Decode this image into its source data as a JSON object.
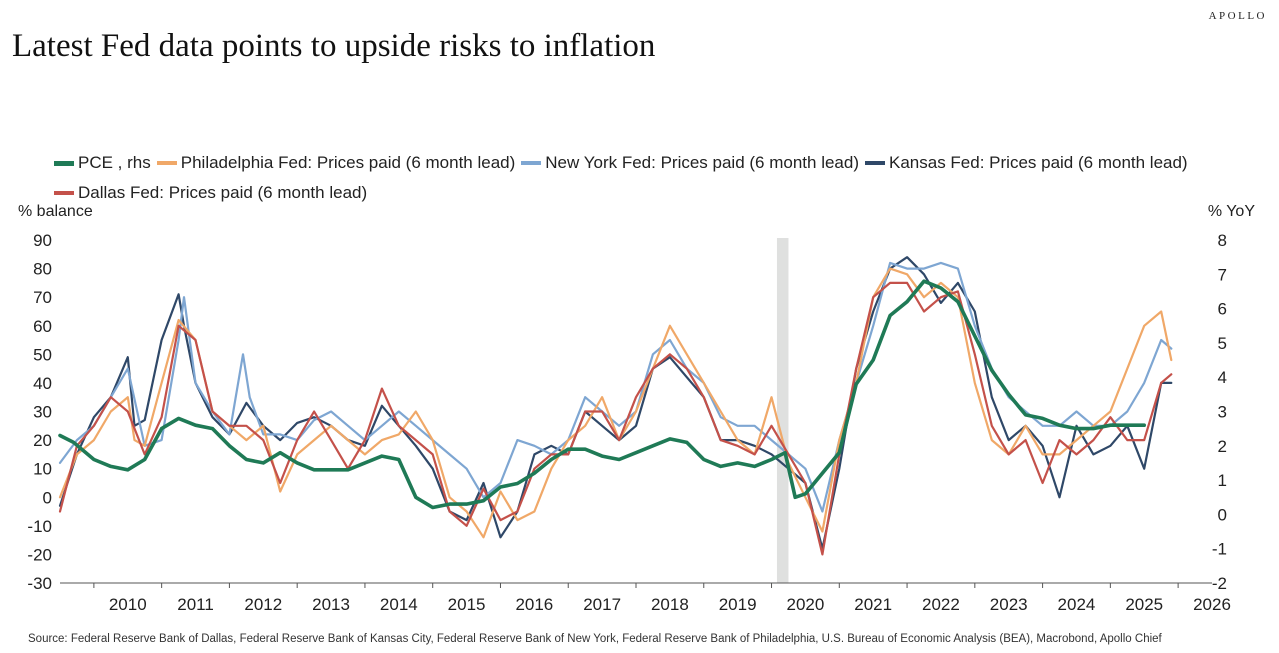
{
  "header": {
    "brand": "APOLLO",
    "title": "Latest Fed data points to upside risks to inflation"
  },
  "footer": {
    "source": "Source: Federal Reserve Bank of Dallas, Federal Reserve Bank of Kansas City, Federal Reserve Bank of New York, Federal Reserve Bank of Philadelphia, U.S. Bureau of Economic Analysis (BEA), Macrobond, Apollo Chief"
  },
  "chart_data": {
    "type": "line",
    "title": "Latest Fed data points to upside risks to inflation",
    "ylabel_left": "% balance",
    "ylabel_right": "% YoY",
    "ylim_left": [
      -30,
      90
    ],
    "ylim_right": [
      -2,
      8
    ],
    "yticks_left": [
      "90",
      "80",
      "70",
      "60",
      "50",
      "40",
      "30",
      "20",
      "10",
      "0",
      "-10",
      "-20",
      "-30"
    ],
    "yticks_right": [
      "8",
      "7",
      "6",
      "5",
      "4",
      "3",
      "2",
      "1",
      "0",
      "-1",
      "-2"
    ],
    "xlim": [
      2009.5,
      2026.5
    ],
    "xticks": [
      "2010",
      "2011",
      "2012",
      "2013",
      "2014",
      "2015",
      "2016",
      "2017",
      "2018",
      "2019",
      "2020",
      "2021",
      "2022",
      "2023",
      "2024",
      "2025",
      "2026"
    ],
    "recession_shade": [
      2020.08,
      2020.25
    ],
    "legend_position": "top",
    "series": [
      {
        "name": "Kansas Fed: Prices paid (6 month lead)",
        "label": "Kansas Fed: Prices paid (6 month lead)",
        "color": "#2f4868",
        "axis": "left",
        "x": [
          2009.5,
          2009.75,
          2010.0,
          2010.25,
          2010.5,
          2010.6,
          2010.75,
          2011.0,
          2011.25,
          2011.33,
          2011.5,
          2011.75,
          2012.0,
          2012.25,
          2012.5,
          2012.75,
          2013.0,
          2013.25,
          2013.5,
          2013.75,
          2014.0,
          2014.25,
          2014.5,
          2014.75,
          2015.0,
          2015.25,
          2015.5,
          2015.75,
          2016.0,
          2016.25,
          2016.5,
          2016.75,
          2017.0,
          2017.25,
          2017.5,
          2017.75,
          2018.0,
          2018.25,
          2018.5,
          2018.75,
          2019.0,
          2019.25,
          2019.5,
          2019.75,
          2020.0,
          2020.25,
          2020.5,
          2020.75,
          2021.0,
          2021.25,
          2021.5,
          2021.75,
          2022.0,
          2022.25,
          2022.5,
          2022.75,
          2023.0,
          2023.25,
          2023.5,
          2023.75,
          2024.0,
          2024.25,
          2024.5,
          2024.75,
          2025.0,
          2025.25,
          2025.5,
          2025.75,
          2025.9
        ],
        "values": [
          -3,
          15,
          28,
          35,
          49,
          25,
          27,
          55,
          71,
          60,
          40,
          28,
          22,
          33,
          25,
          20,
          26,
          28,
          25,
          20,
          18,
          32,
          25,
          18,
          10,
          -5,
          -8,
          5,
          -14,
          -5,
          15,
          18,
          15,
          30,
          25,
          20,
          25,
          45,
          49,
          42,
          35,
          20,
          20,
          18,
          15,
          10,
          5,
          -18,
          10,
          45,
          65,
          80,
          84,
          78,
          68,
          75,
          65,
          35,
          20,
          25,
          18,
          0,
          25,
          15,
          18,
          25,
          10,
          40,
          40
        ]
      },
      {
        "name": "New York Fed: Prices paid (6 month lead)",
        "label": "New York Fed: Prices paid (6 month lead)",
        "color": "#7ea6d2",
        "axis": "left",
        "x": [
          2009.5,
          2009.75,
          2010.0,
          2010.25,
          2010.5,
          2010.75,
          2011.0,
          2011.25,
          2011.33,
          2011.5,
          2011.75,
          2012.0,
          2012.2,
          2012.3,
          2012.5,
          2012.75,
          2013.0,
          2013.25,
          2013.5,
          2013.75,
          2014.0,
          2014.25,
          2014.5,
          2014.75,
          2015.0,
          2015.25,
          2015.5,
          2015.75,
          2016.0,
          2016.25,
          2016.5,
          2016.75,
          2017.0,
          2017.25,
          2017.5,
          2017.75,
          2018.0,
          2018.25,
          2018.5,
          2018.75,
          2019.0,
          2019.25,
          2019.5,
          2019.75,
          2020.0,
          2020.25,
          2020.5,
          2020.75,
          2021.0,
          2021.25,
          2021.5,
          2021.75,
          2022.0,
          2022.25,
          2022.5,
          2022.75,
          2023.0,
          2023.25,
          2023.5,
          2023.75,
          2024.0,
          2024.25,
          2024.5,
          2024.75,
          2025.0,
          2025.25,
          2025.5,
          2025.75,
          2025.9
        ],
        "values": [
          12,
          20,
          25,
          35,
          45,
          18,
          20,
          55,
          70,
          40,
          30,
          22,
          50,
          35,
          22,
          22,
          20,
          27,
          30,
          25,
          20,
          25,
          30,
          25,
          20,
          15,
          10,
          0,
          5,
          20,
          18,
          15,
          20,
          35,
          30,
          25,
          30,
          50,
          55,
          45,
          40,
          28,
          25,
          25,
          20,
          15,
          10,
          -5,
          20,
          40,
          60,
          82,
          80,
          80,
          82,
          80,
          60,
          45,
          35,
          30,
          25,
          25,
          30,
          25,
          25,
          30,
          40,
          55,
          52
        ]
      },
      {
        "name": "Philadelphia Fed: Prices paid (6 month lead)",
        "label": "Philadelphia Fed: Prices paid (6 month lead)",
        "color": "#f0a868",
        "axis": "left",
        "x": [
          2009.5,
          2009.75,
          2010.0,
          2010.25,
          2010.5,
          2010.6,
          2010.75,
          2011.0,
          2011.25,
          2011.5,
          2011.75,
          2012.0,
          2012.25,
          2012.5,
          2012.75,
          2013.0,
          2013.25,
          2013.5,
          2013.75,
          2014.0,
          2014.25,
          2014.5,
          2014.75,
          2015.0,
          2015.25,
          2015.5,
          2015.75,
          2016.0,
          2016.25,
          2016.5,
          2016.75,
          2017.0,
          2017.25,
          2017.5,
          2017.75,
          2018.0,
          2018.25,
          2018.5,
          2018.75,
          2019.0,
          2019.25,
          2019.5,
          2019.75,
          2020.0,
          2020.25,
          2020.5,
          2020.75,
          2021.0,
          2021.25,
          2021.5,
          2021.75,
          2022.0,
          2022.25,
          2022.5,
          2022.75,
          2023.0,
          2023.25,
          2023.5,
          2023.75,
          2024.0,
          2024.25,
          2024.5,
          2024.75,
          2025.0,
          2025.25,
          2025.5,
          2025.75,
          2025.9
        ],
        "values": [
          0,
          15,
          20,
          30,
          35,
          20,
          18,
          40,
          62,
          55,
          30,
          25,
          20,
          25,
          2,
          15,
          20,
          25,
          20,
          15,
          20,
          22,
          30,
          20,
          0,
          -5,
          -14,
          2,
          -8,
          -5,
          10,
          20,
          25,
          35,
          20,
          30,
          45,
          60,
          50,
          40,
          30,
          20,
          15,
          35,
          12,
          0,
          -12,
          20,
          40,
          70,
          80,
          78,
          70,
          75,
          70,
          40,
          20,
          15,
          25,
          15,
          15,
          20,
          25,
          30,
          45,
          60,
          65,
          48
        ]
      },
      {
        "name": "Dallas Fed: Prices paid (6 month lead)",
        "label": "Dallas Fed: Prices paid (6 month lead)",
        "color": "#c4514a",
        "axis": "left",
        "x": [
          2009.5,
          2009.75,
          2010.0,
          2010.25,
          2010.5,
          2010.75,
          2011.0,
          2011.25,
          2011.5,
          2011.75,
          2012.0,
          2012.25,
          2012.5,
          2012.75,
          2013.0,
          2013.25,
          2013.5,
          2013.75,
          2014.0,
          2014.25,
          2014.5,
          2014.75,
          2015.0,
          2015.25,
          2015.5,
          2015.75,
          2016.0,
          2016.25,
          2016.5,
          2016.75,
          2017.0,
          2017.25,
          2017.5,
          2017.75,
          2018.0,
          2018.25,
          2018.5,
          2018.75,
          2019.0,
          2019.25,
          2019.5,
          2019.75,
          2020.0,
          2020.25,
          2020.5,
          2020.75,
          2021.0,
          2021.25,
          2021.5,
          2021.75,
          2022.0,
          2022.25,
          2022.5,
          2022.75,
          2023.0,
          2023.25,
          2023.5,
          2023.75,
          2024.0,
          2024.25,
          2024.5,
          2024.75,
          2025.0,
          2025.25,
          2025.5,
          2025.75,
          2025.9
        ],
        "values": [
          -5,
          18,
          25,
          35,
          30,
          15,
          28,
          60,
          55,
          30,
          25,
          25,
          20,
          5,
          20,
          30,
          20,
          10,
          20,
          38,
          25,
          20,
          15,
          -5,
          -10,
          3,
          -8,
          -5,
          10,
          15,
          15,
          30,
          30,
          20,
          35,
          45,
          50,
          45,
          35,
          20,
          18,
          15,
          25,
          15,
          5,
          -20,
          15,
          45,
          70,
          75,
          75,
          65,
          70,
          72,
          50,
          25,
          15,
          20,
          5,
          20,
          15,
          20,
          28,
          20,
          20,
          40,
          43
        ]
      },
      {
        "name": "PCE , rhs",
        "label": "PCE , rhs",
        "color": "#1f7a56",
        "axis": "right",
        "x": [
          2009.5,
          2009.7,
          2010.0,
          2010.25,
          2010.5,
          2010.75,
          2011.0,
          2011.25,
          2011.5,
          2011.75,
          2012.0,
          2012.25,
          2012.5,
          2012.75,
          2013.0,
          2013.25,
          2013.5,
          2013.75,
          2014.0,
          2014.25,
          2014.5,
          2014.75,
          2015.0,
          2015.25,
          2015.5,
          2015.75,
          2016.0,
          2016.25,
          2016.5,
          2016.75,
          2017.0,
          2017.25,
          2017.5,
          2017.75,
          2018.0,
          2018.25,
          2018.5,
          2018.75,
          2019.0,
          2019.25,
          2019.5,
          2019.75,
          2020.0,
          2020.2,
          2020.35,
          2020.5,
          2020.75,
          2021.0,
          2021.25,
          2021.5,
          2021.75,
          2022.0,
          2022.25,
          2022.5,
          2022.75,
          2023.0,
          2023.25,
          2023.5,
          2023.75,
          2024.0,
          2024.25,
          2024.5,
          2024.75,
          2025.0,
          2025.25,
          2025.5
        ],
        "values": [
          2.3,
          2.1,
          1.6,
          1.4,
          1.3,
          1.6,
          2.5,
          2.8,
          2.6,
          2.5,
          2.0,
          1.6,
          1.5,
          1.8,
          1.5,
          1.3,
          1.3,
          1.3,
          1.5,
          1.7,
          1.6,
          0.5,
          0.2,
          0.3,
          0.3,
          0.4,
          0.8,
          0.9,
          1.2,
          1.6,
          1.9,
          1.9,
          1.7,
          1.6,
          1.8,
          2.0,
          2.2,
          2.1,
          1.6,
          1.4,
          1.5,
          1.4,
          1.6,
          1.8,
          0.5,
          0.6,
          1.2,
          1.8,
          3.8,
          4.5,
          5.8,
          6.2,
          6.8,
          6.6,
          6.2,
          5.2,
          4.2,
          3.5,
          2.9,
          2.8,
          2.6,
          2.5,
          2.5,
          2.6,
          2.6,
          2.6
        ]
      }
    ]
  }
}
